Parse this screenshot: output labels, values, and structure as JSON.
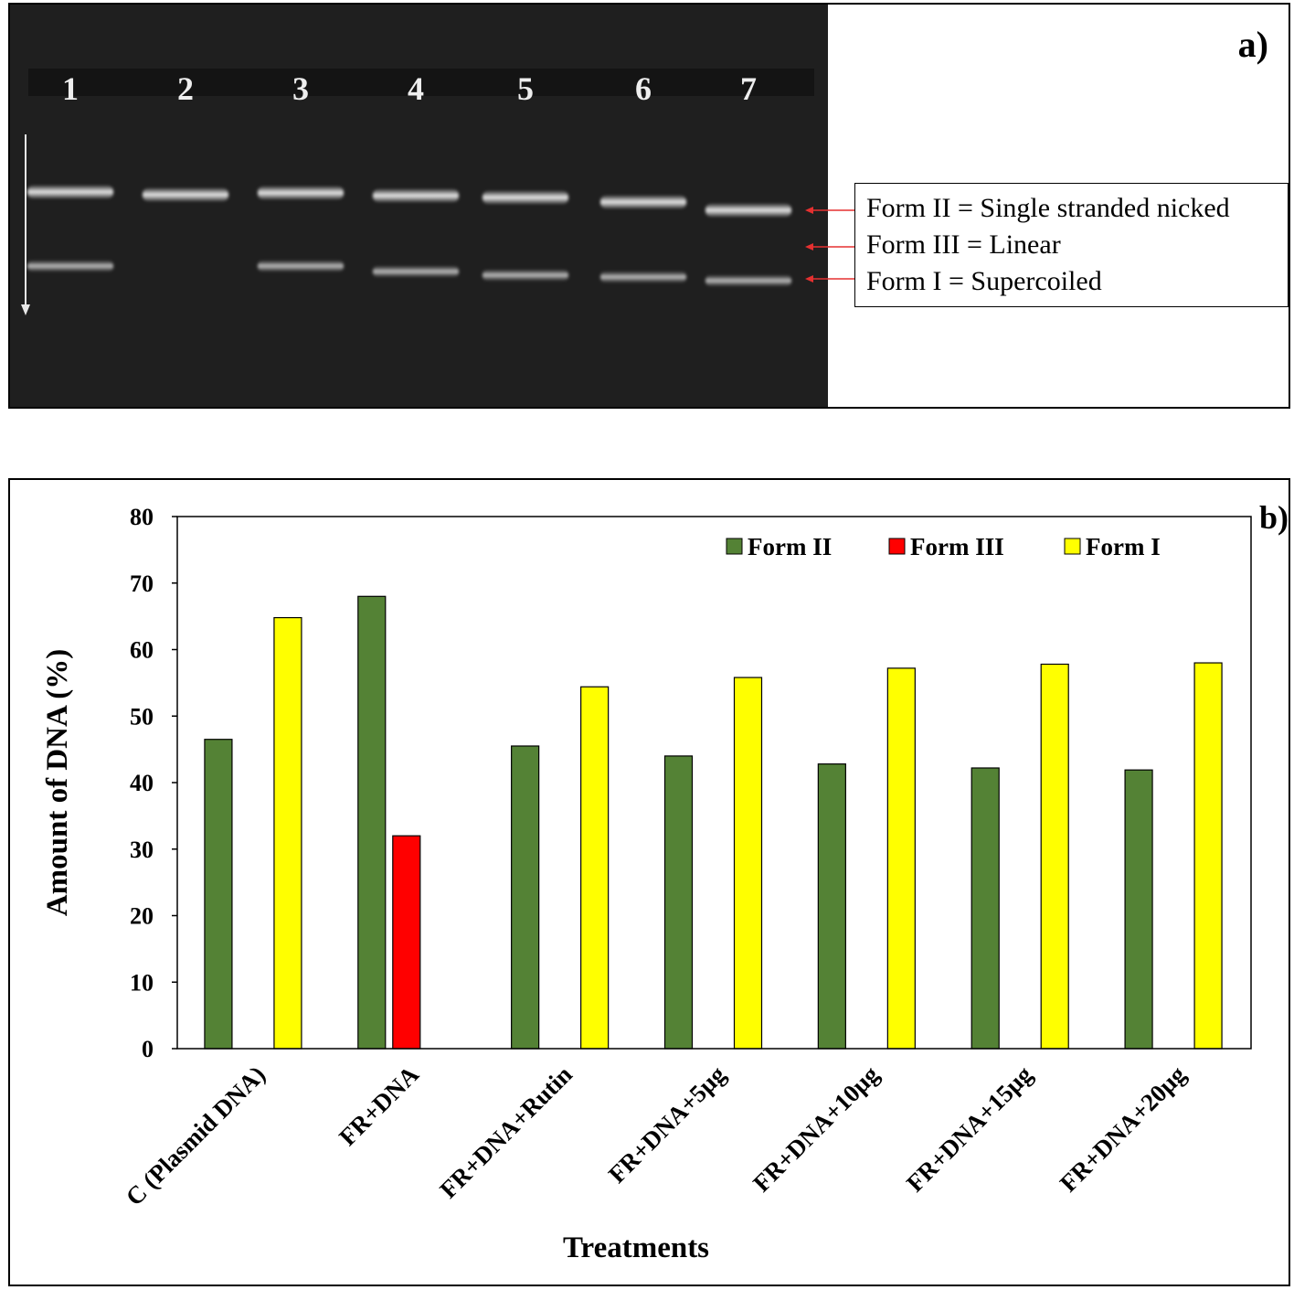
{
  "panel_a": {
    "label": "a)",
    "lanes": [
      "1",
      "2",
      "3",
      "4",
      "5",
      "6",
      "7"
    ],
    "legend": [
      "Form II = Single stranded nicked",
      "Form III = Linear",
      "Form I = Supercoiled"
    ],
    "colors": {
      "gel_bg": "#1e1e1e",
      "band": "#e6e6e6",
      "arrow": "#e53030"
    }
  },
  "panel_b": {
    "label": "b)",
    "chart_data": {
      "type": "bar",
      "title": "",
      "xlabel": "Treatments",
      "ylabel": "Amount of DNA (%)",
      "ylim": [
        0,
        80
      ],
      "yticks": [
        0,
        10,
        20,
        30,
        40,
        50,
        60,
        70,
        80
      ],
      "grid": false,
      "legend_position": "top-right",
      "categories": [
        "C (Plasmid DNA)",
        "FR+DNA",
        "FR+DNA+Rutin",
        "FR+DNA+5µg",
        "FR+DNA+10µg",
        "FR+DNA+15µg",
        "FR+DNA+20µg"
      ],
      "series": [
        {
          "name": "Form II",
          "color": "#548235",
          "values": [
            46.5,
            68,
            45.5,
            44,
            42.8,
            42.2,
            41.9
          ]
        },
        {
          "name": "Form III",
          "color": "#ff0000",
          "values": [
            0,
            32,
            0,
            0,
            0,
            0,
            0
          ]
        },
        {
          "name": "Form I",
          "color": "#ffff00",
          "values": [
            64.8,
            0,
            54.4,
            55.8,
            57.2,
            57.8,
            58
          ]
        }
      ]
    }
  }
}
